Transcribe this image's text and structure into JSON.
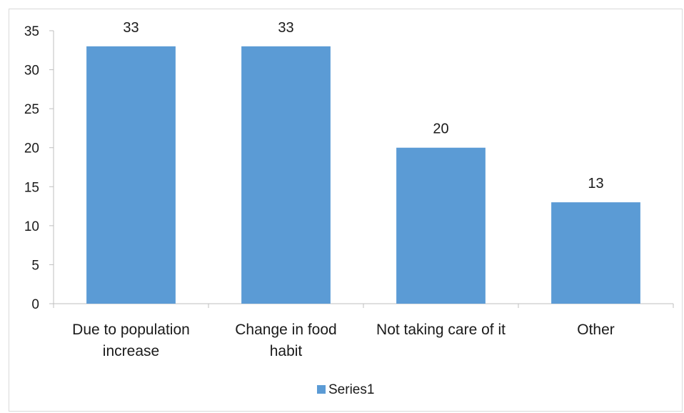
{
  "chart_data": {
    "type": "bar",
    "categories": [
      [
        "Due to population",
        "increase"
      ],
      [
        "Change in food",
        "habit"
      ],
      [
        "Not taking care of it"
      ],
      [
        "Other"
      ]
    ],
    "series": [
      {
        "name": "Series1",
        "values": [
          33,
          33,
          20,
          13
        ],
        "color": "#5b9bd5"
      }
    ],
    "data_labels": [
      "33",
      "33",
      "20",
      "13"
    ],
    "yticks": [
      "0",
      "5",
      "10",
      "15",
      "20",
      "25",
      "30",
      "35"
    ],
    "ylim": [
      0,
      35
    ],
    "grid": false,
    "legend": "bottom"
  }
}
